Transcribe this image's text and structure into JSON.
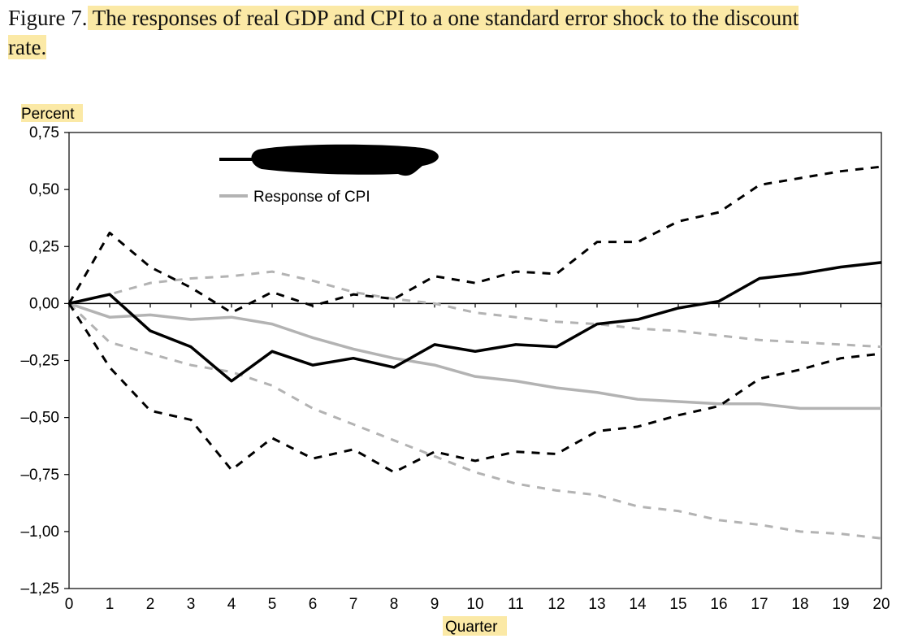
{
  "caption": {
    "prefix": "Figure 7.",
    "text": " The responses of real GDP and CPI to a one standard error shock to the discount",
    "continuation": "rate."
  },
  "colors": {
    "highlight": "#fbe9a6",
    "gdp": "#000000",
    "cpi": "#b3b3b3",
    "redaction": "#000000"
  },
  "chart_data": {
    "type": "line",
    "ylabel": "Percent",
    "xlabel": "Quarter",
    "ylim": [
      -1.25,
      0.75
    ],
    "xlim": [
      0,
      20
    ],
    "yticks": [
      0.75,
      0.5,
      0.25,
      0.0,
      -0.25,
      -0.5,
      -0.75,
      -1.0,
      -1.25
    ],
    "ytick_labels": [
      "0,75",
      "0,50",
      "0,25",
      "0,00",
      "–0,25",
      "–0,50",
      "–0,75",
      "–1,00",
      "–1,25"
    ],
    "x": [
      0,
      1,
      2,
      3,
      4,
      5,
      6,
      7,
      8,
      9,
      10,
      11,
      12,
      13,
      14,
      15,
      16,
      17,
      18,
      19,
      20
    ],
    "xtick_labels": [
      "0",
      "1",
      "2",
      "3",
      "4",
      "5",
      "6",
      "7",
      "8",
      "9",
      "10",
      "11",
      "12",
      "13",
      "14",
      "15",
      "16",
      "17",
      "18",
      "19",
      "20"
    ],
    "grid": false,
    "legend_position": "top-left",
    "series": [
      {
        "name": "",
        "role": "gdp",
        "style": "solid",
        "color": "#000000",
        "values": [
          0.0,
          0.04,
          -0.12,
          -0.19,
          -0.34,
          -0.21,
          -0.27,
          -0.24,
          -0.28,
          -0.18,
          -0.21,
          -0.18,
          -0.19,
          -0.09,
          -0.07,
          -0.02,
          0.01,
          0.11,
          0.13,
          0.16,
          0.18
        ]
      },
      {
        "name": "",
        "role": "gdp-upper",
        "style": "dashed",
        "color": "#000000",
        "values": [
          0.0,
          0.31,
          0.16,
          0.07,
          -0.04,
          0.05,
          -0.01,
          0.04,
          0.02,
          0.12,
          0.09,
          0.14,
          0.13,
          0.27,
          0.27,
          0.36,
          0.4,
          0.52,
          0.55,
          0.58,
          0.6
        ]
      },
      {
        "name": "",
        "role": "gdp-lower",
        "style": "dashed",
        "color": "#000000",
        "values": [
          0.0,
          -0.28,
          -0.47,
          -0.51,
          -0.73,
          -0.59,
          -0.68,
          -0.64,
          -0.74,
          -0.65,
          -0.69,
          -0.65,
          -0.66,
          -0.56,
          -0.54,
          -0.49,
          -0.45,
          -0.33,
          -0.29,
          -0.24,
          -0.22
        ]
      },
      {
        "name": "Response of CPI",
        "role": "cpi",
        "style": "solid",
        "color": "#b3b3b3",
        "values": [
          0.0,
          -0.06,
          -0.05,
          -0.07,
          -0.06,
          -0.09,
          -0.15,
          -0.2,
          -0.24,
          -0.27,
          -0.32,
          -0.34,
          -0.37,
          -0.39,
          -0.42,
          -0.43,
          -0.44,
          -0.44,
          -0.46,
          -0.46,
          -0.46
        ]
      },
      {
        "name": "",
        "role": "cpi-upper",
        "style": "dashed",
        "color": "#b3b3b3",
        "values": [
          0.0,
          0.04,
          0.09,
          0.11,
          0.12,
          0.14,
          0.1,
          0.05,
          0.02,
          0.0,
          -0.04,
          -0.06,
          -0.08,
          -0.09,
          -0.11,
          -0.12,
          -0.14,
          -0.16,
          -0.17,
          -0.18,
          -0.19
        ]
      },
      {
        "name": "",
        "role": "cpi-lower",
        "style": "dashed",
        "color": "#b3b3b3",
        "values": [
          0.0,
          -0.17,
          -0.22,
          -0.27,
          -0.3,
          -0.36,
          -0.46,
          -0.53,
          -0.6,
          -0.67,
          -0.74,
          -0.79,
          -0.82,
          -0.84,
          -0.89,
          -0.91,
          -0.95,
          -0.97,
          -1.0,
          -1.01,
          -1.03
        ]
      }
    ],
    "legend": [
      {
        "label": "",
        "color": "#000000",
        "redacted": true
      },
      {
        "label": "Response of CPI",
        "color": "#b3b3b3"
      }
    ]
  }
}
